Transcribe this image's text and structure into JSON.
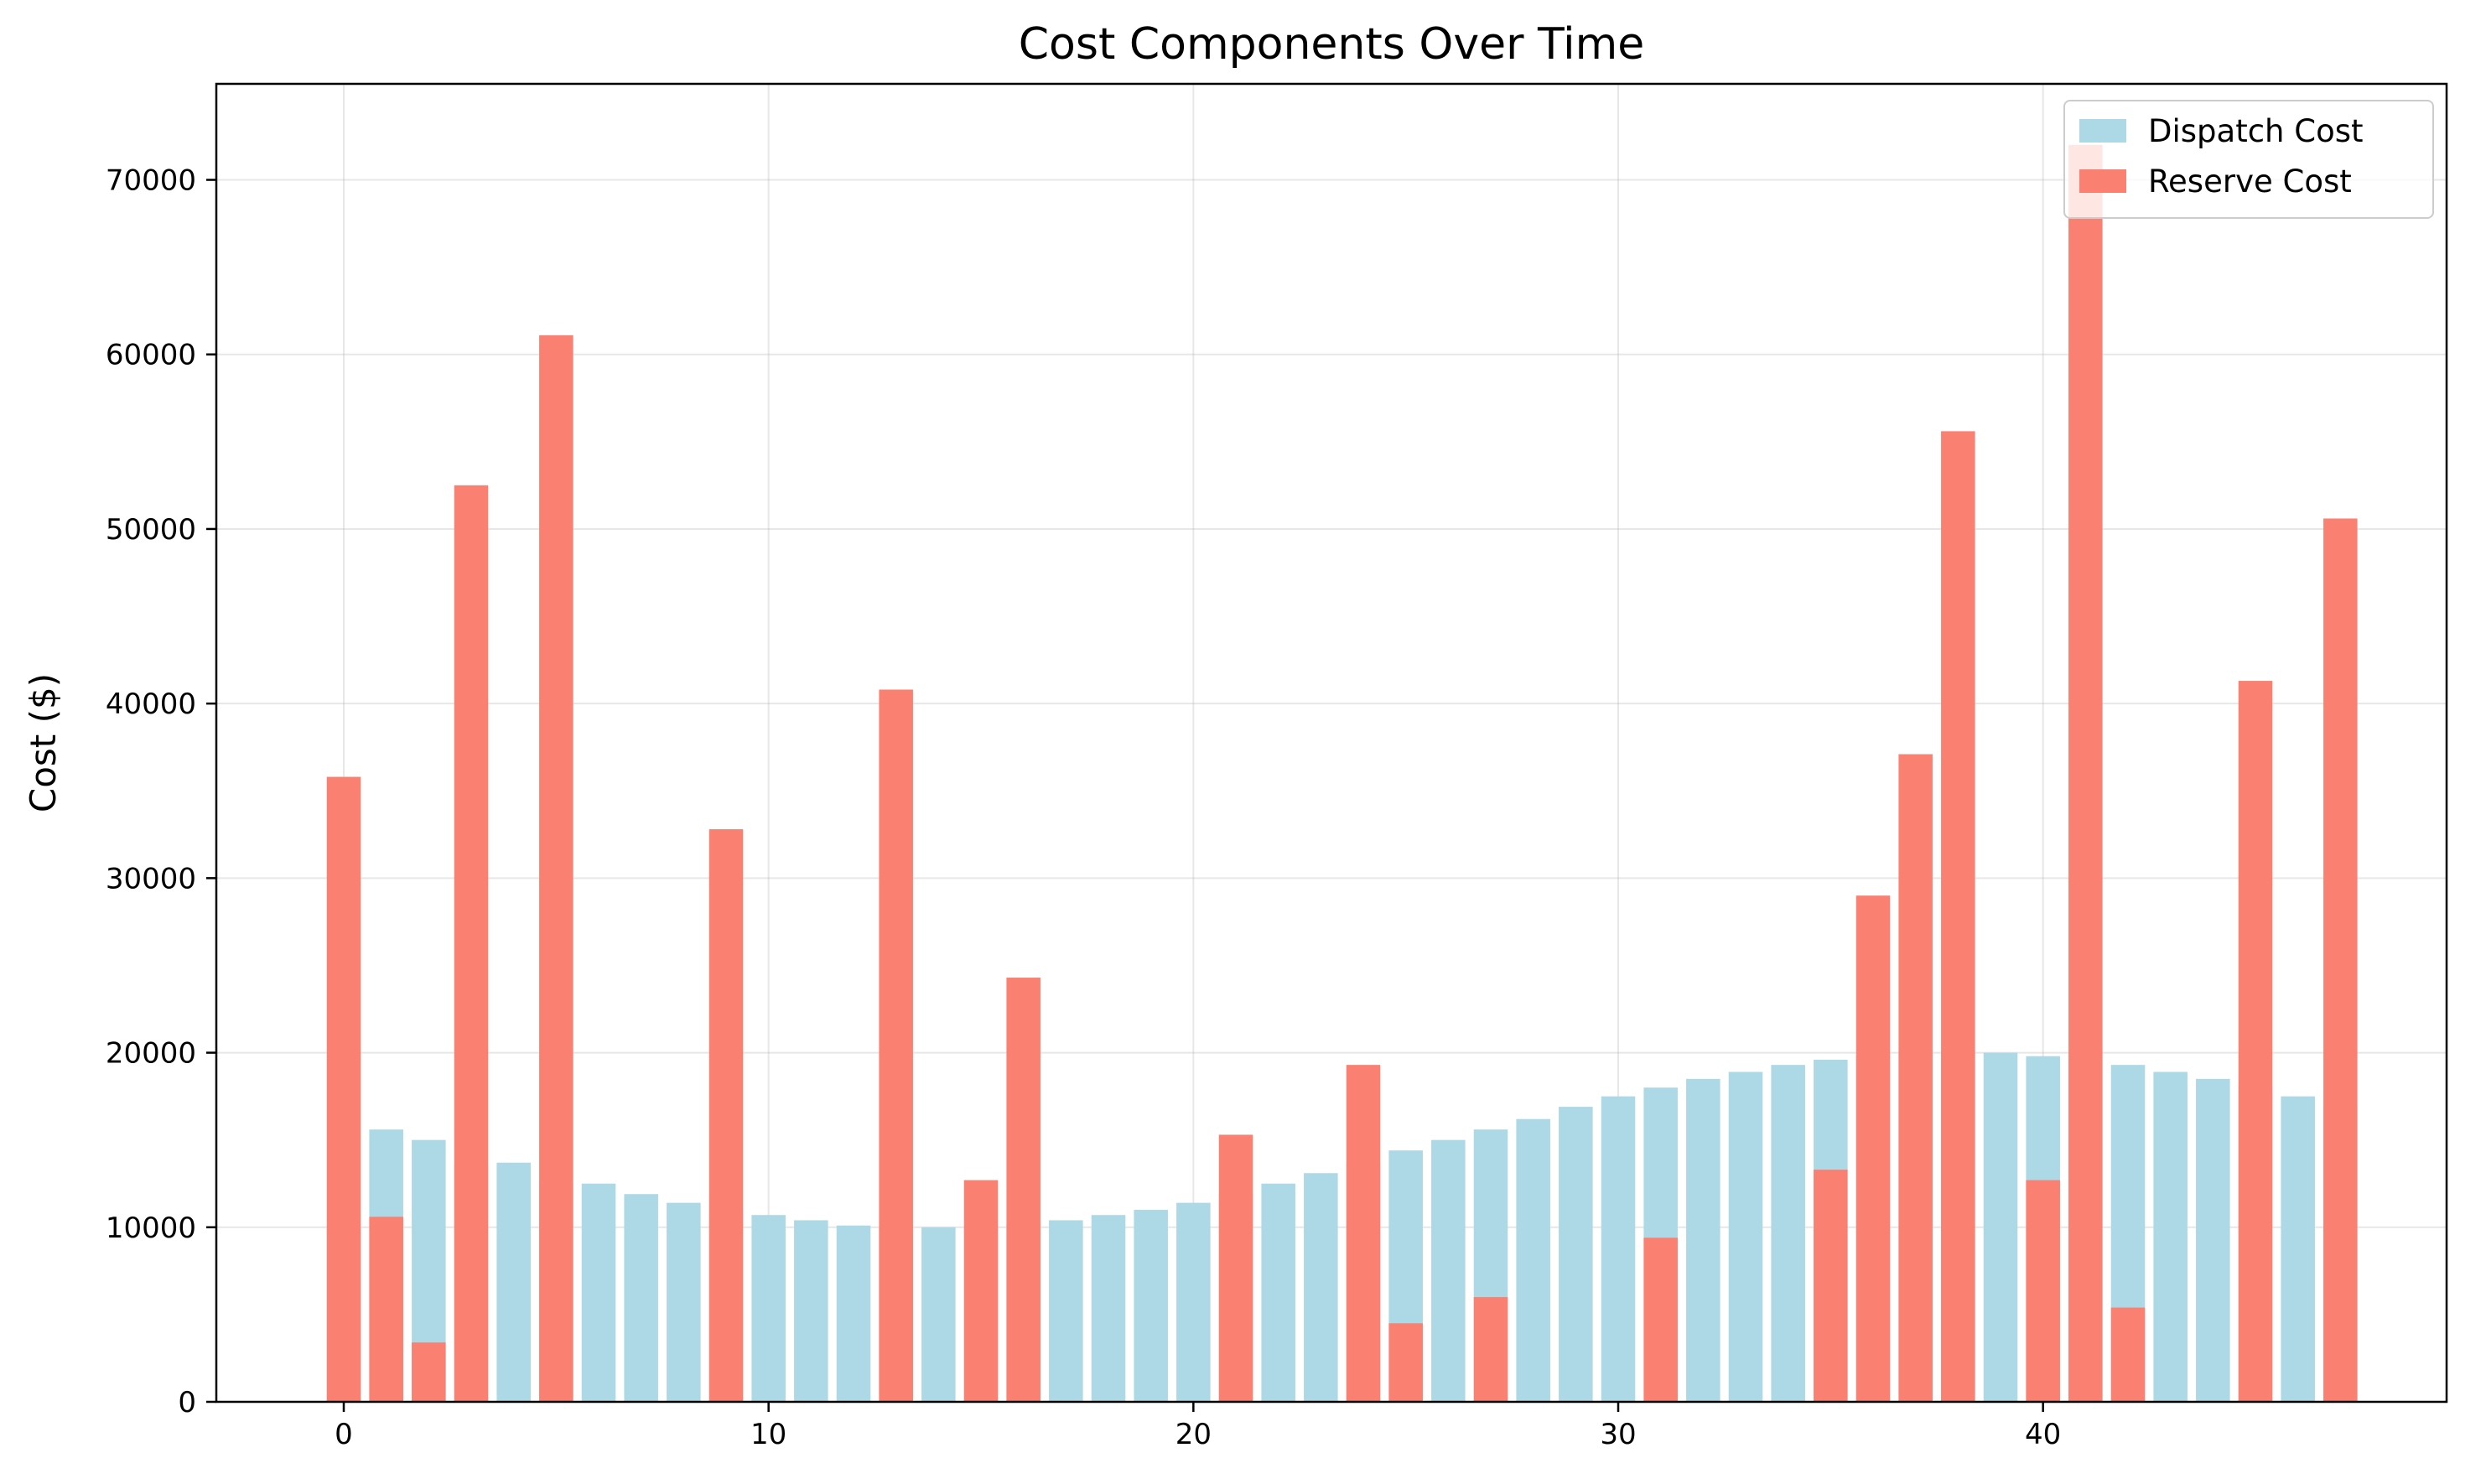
{
  "chart_data": {
    "type": "bar",
    "title": "Cost Components Over Time",
    "xlabel": "",
    "ylabel": "Cost ($)",
    "xlim": [
      -3,
      49.5
    ],
    "ylim": [
      0,
      75500
    ],
    "x_ticks": [
      0,
      10,
      20,
      30,
      40
    ],
    "y_ticks": [
      0,
      10000,
      20000,
      30000,
      40000,
      50000,
      60000,
      70000
    ],
    "grid": true,
    "legend_position": "top-right",
    "x": [
      0,
      1,
      2,
      3,
      4,
      5,
      6,
      7,
      8,
      9,
      10,
      11,
      12,
      13,
      14,
      15,
      16,
      17,
      18,
      19,
      20,
      21,
      22,
      23,
      24,
      25,
      26,
      27,
      28,
      29,
      30,
      31,
      32,
      33,
      34,
      35,
      36,
      37,
      38,
      39,
      40,
      41,
      42,
      43,
      44,
      45,
      46,
      47
    ],
    "series": [
      {
        "name": "Dispatch Cost",
        "color": "#add8e6",
        "values": [
          10000,
          15600,
          15000,
          13600,
          13700,
          12600,
          12500,
          11900,
          11400,
          10800,
          10700,
          10400,
          10100,
          10000,
          10000,
          10100,
          10200,
          10400,
          10700,
          11000,
          11400,
          11900,
          12500,
          13100,
          13700,
          14400,
          15000,
          15600,
          16200,
          16900,
          17500,
          18000,
          18500,
          18900,
          19300,
          19600,
          19800,
          20000,
          20100,
          20000,
          19800,
          19600,
          19300,
          18900,
          18500,
          18000,
          17500,
          17000
        ]
      },
      {
        "name": "Reserve Cost",
        "color": "#fa8072",
        "values": [
          35800,
          10600,
          3400,
          52500,
          0,
          61100,
          0,
          0,
          0,
          32800,
          0,
          0,
          0,
          40800,
          0,
          12700,
          24300,
          0,
          0,
          0,
          0,
          15300,
          0,
          0,
          19300,
          4500,
          0,
          6000,
          0,
          0,
          0,
          9400,
          0,
          0,
          0,
          13300,
          29000,
          37100,
          55600,
          0,
          12700,
          72000,
          5400,
          0,
          0,
          41300,
          0,
          50600
        ]
      }
    ]
  }
}
